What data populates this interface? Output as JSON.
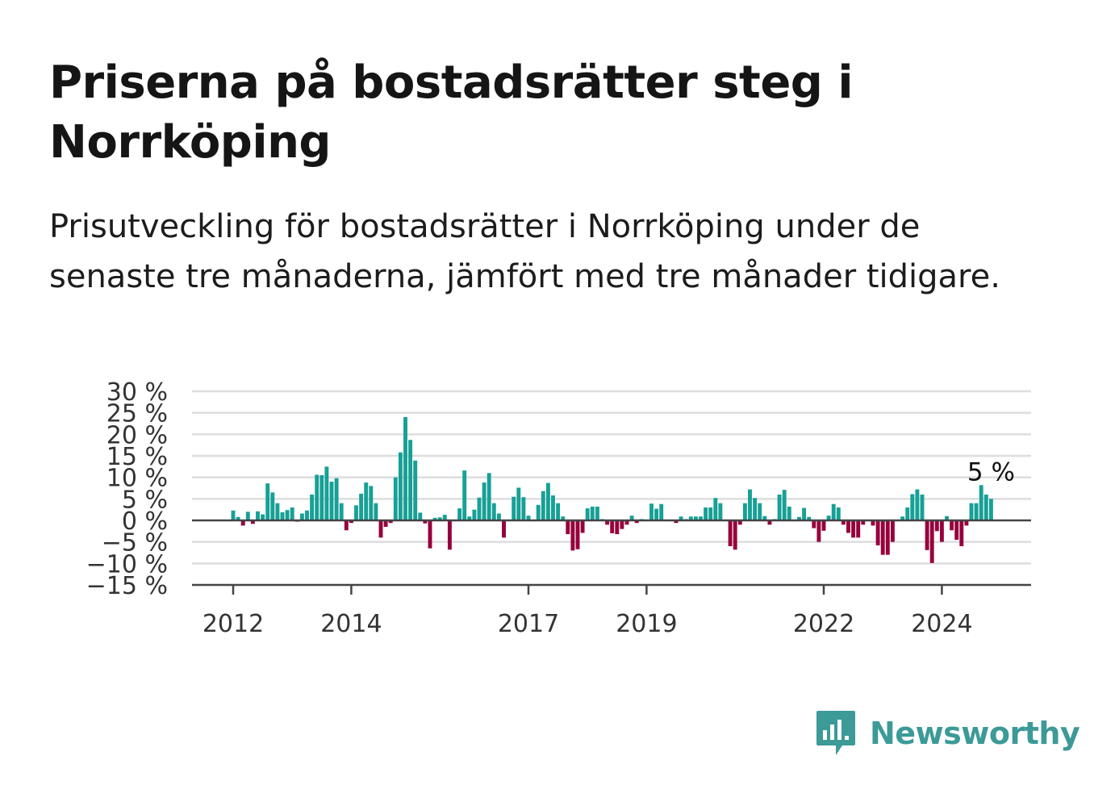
{
  "header": {
    "title": "Priserna på bostadsrätter steg i Norrköping",
    "subtitle": "Prisutveckling för bostadsrätter i Norrköping under de senaste tre månaderna, jämfört med tre månader tidigare."
  },
  "brand": {
    "name": "Newsworthy",
    "icon": "newsworthy-logo-icon",
    "color": "#3c9a97"
  },
  "colors": {
    "positive": "#17a096",
    "negative": "#96003c",
    "grid": "#dddddd",
    "axis": "#444444"
  },
  "chart_data": {
    "type": "bar",
    "title": "Priserna på bostadsrätter steg i Norrköping",
    "xlabel": "",
    "ylabel": "",
    "ylim": [
      -15,
      30
    ],
    "y_ticks": [
      30,
      25,
      20,
      15,
      10,
      5,
      0,
      -5,
      -10,
      -15
    ],
    "y_tick_labels": [
      "30 %",
      "25 %",
      "20 %",
      "15 %",
      "10 %",
      "5 %",
      "0 %",
      "−5 %",
      "−10 %",
      "−15 %"
    ],
    "x_ticks": [
      2012,
      2014,
      2017,
      2019,
      2022,
      2024
    ],
    "x_tick_labels": [
      "2012",
      "2014",
      "2017",
      "2019",
      "2022",
      "2024"
    ],
    "grid": true,
    "start_year": 2012,
    "start_month": 1,
    "annotation": {
      "text": "5 %",
      "value": 5
    },
    "values": [
      2.3,
      0.8,
      -1.2,
      2.0,
      -0.8,
      2.1,
      1.4,
      8.6,
      6.5,
      4.0,
      1.9,
      2.4,
      3.0,
      -0.3,
      1.6,
      2.3,
      6.0,
      10.6,
      10.5,
      12.5,
      9.0,
      9.8,
      4.0,
      -2.3,
      -0.6,
      3.5,
      6.2,
      8.8,
      8.0,
      4.0,
      -4.0,
      -1.5,
      -0.6,
      10.0,
      15.8,
      24.0,
      18.7,
      13.9,
      1.8,
      -0.7,
      -6.5,
      0.6,
      0.7,
      1.3,
      -6.8,
      0.2,
      2.8,
      11.6,
      0.9,
      2.5,
      5.3,
      8.8,
      11.0,
      4.0,
      1.6,
      -4.0,
      0.2,
      5.5,
      7.6,
      5.4,
      1.1,
      0.2,
      3.6,
      6.8,
      8.7,
      5.8,
      4.0,
      0.9,
      -3.2,
      -7.0,
      -6.7,
      -2.9,
      2.8,
      3.2,
      3.2,
      0.3,
      -1.0,
      -3.0,
      -3.2,
      -2.0,
      -1.0,
      1.1,
      -0.6,
      0.3,
      0.2,
      3.9,
      2.7,
      3.8,
      0.2,
      0.1,
      -0.6,
      0.9,
      0.3,
      0.9,
      0.9,
      0.9,
      3.0,
      3.0,
      5.2,
      4.0,
      0.2,
      -6.0,
      -6.8,
      -1.0,
      4.0,
      7.2,
      5.2,
      4.0,
      1.0,
      -1.0,
      0.3,
      6.0,
      7.1,
      3.2,
      0.2,
      0.8,
      2.9,
      0.8,
      -1.8,
      -5.0,
      -2.4,
      1.1,
      3.8,
      3.0,
      -1.0,
      -2.9,
      -4.0,
      -4.0,
      -1.0,
      0.2,
      -1.2,
      -5.8,
      -8.0,
      -8.0,
      -5.0,
      0.2,
      0.9,
      3.0,
      6.1,
      7.2,
      6.0,
      -6.9,
      -9.9,
      -2.5,
      -5.0,
      1.0,
      -2.3,
      -4.5,
      -6.0,
      -1.2,
      4.0,
      4.0,
      8.2,
      6.0,
      5.0
    ]
  }
}
